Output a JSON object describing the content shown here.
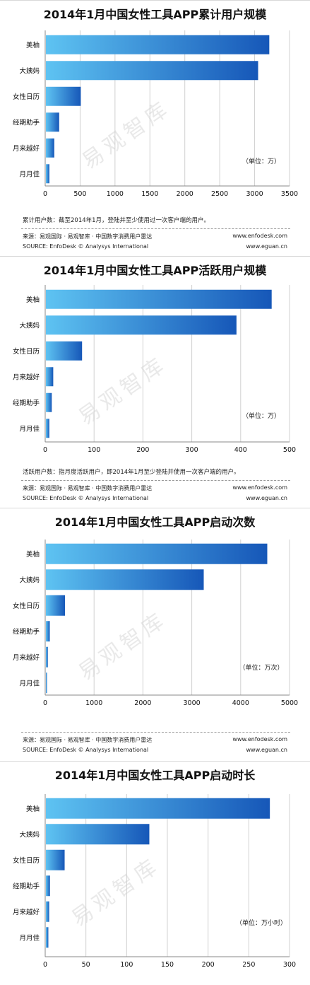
{
  "watermark": "易观智库",
  "colors": {
    "bar_light": "#5ec3f2",
    "bar_dark": "#1657b8",
    "grid": "#d0d0d0",
    "axis": "#888888"
  },
  "chart_data": [
    {
      "type": "bar",
      "orientation": "horizontal",
      "title": "2014年1月中国女性工具APP累计用户规模",
      "unit_label": "（单位：万）",
      "categories": [
        "美柚",
        "大姨妈",
        "女性日历",
        "经期助手",
        "月来越好",
        "月月佳"
      ],
      "values": [
        3200,
        3040,
        500,
        190,
        120,
        50
      ],
      "xlim": [
        0,
        3500
      ],
      "xticks": [
        "0",
        "500",
        "1000",
        "1500",
        "2000",
        "2500",
        "3000",
        "3500"
      ],
      "grid": true,
      "note": "累计用户数：截至2014年1月，登陆并至少使用过一次客户端的用户。",
      "source_cn": "来源：易观国际 · 易观智库 · 中国数字消费用户雷达",
      "source_en": "SOURCE: EnfoDesk © Analysys International",
      "url1": "www.enfodesk.com",
      "url2": "www.eguan.cn"
    },
    {
      "type": "bar",
      "orientation": "horizontal",
      "title": "2014年1月中国女性工具APP活跃用户规模",
      "unit_label": "（单位：万）",
      "categories": [
        "美柚",
        "大姨妈",
        "女性日历",
        "月来越好",
        "经期助手",
        "月月佳"
      ],
      "values": [
        462,
        390,
        74,
        15,
        12,
        7
      ],
      "xlim": [
        0,
        500
      ],
      "xticks": [
        "0",
        "100",
        "200",
        "300",
        "400",
        "500"
      ],
      "grid": true,
      "note": "活跃用户数：指月度活跃用户，即2014年1月至少登陆并使用一次客户端的用户。",
      "source_cn": "来源：易观国际 · 易观智库 · 中国数字消费用户雷达",
      "source_en": "SOURCE: EnfoDesk © Analysys International",
      "url1": "www.enfodesk.com",
      "url2": "www.eguan.cn"
    },
    {
      "type": "bar",
      "orientation": "horizontal",
      "title": "2014年1月中国女性工具APP启动次数",
      "unit_label": "（单位：万次）",
      "categories": [
        "美柚",
        "大姨妈",
        "女性日历",
        "经期助手",
        "月来越好",
        "月月佳"
      ],
      "values": [
        4530,
        3230,
        390,
        80,
        40,
        15
      ],
      "xlim": [
        0,
        5000
      ],
      "xticks": [
        "0",
        "1000",
        "2000",
        "3000",
        "4000",
        "5000"
      ],
      "grid": true,
      "note": "",
      "source_cn": "来源：易观国际 · 易观智库 · 中国数字消费用户雷达",
      "source_en": "SOURCE: EnfoDesk © Analysys International",
      "url1": "www.enfodesk.com",
      "url2": "www.eguan.cn"
    },
    {
      "type": "bar",
      "orientation": "horizontal",
      "title": "2014年1月中国女性工具APP启动时长",
      "unit_label": "（单位：万小时）",
      "categories": [
        "美柚",
        "大姨妈",
        "女性日历",
        "经期助手",
        "月来越好",
        "月月佳"
      ],
      "values": [
        275,
        127,
        23,
        5,
        4,
        3
      ],
      "xlim": [
        0,
        300
      ],
      "xticks": [
        "0",
        "50",
        "100",
        "150",
        "200",
        "250",
        "300"
      ],
      "grid": true,
      "note": "",
      "source_cn": "",
      "source_en": "",
      "url1": "",
      "url2": ""
    }
  ]
}
